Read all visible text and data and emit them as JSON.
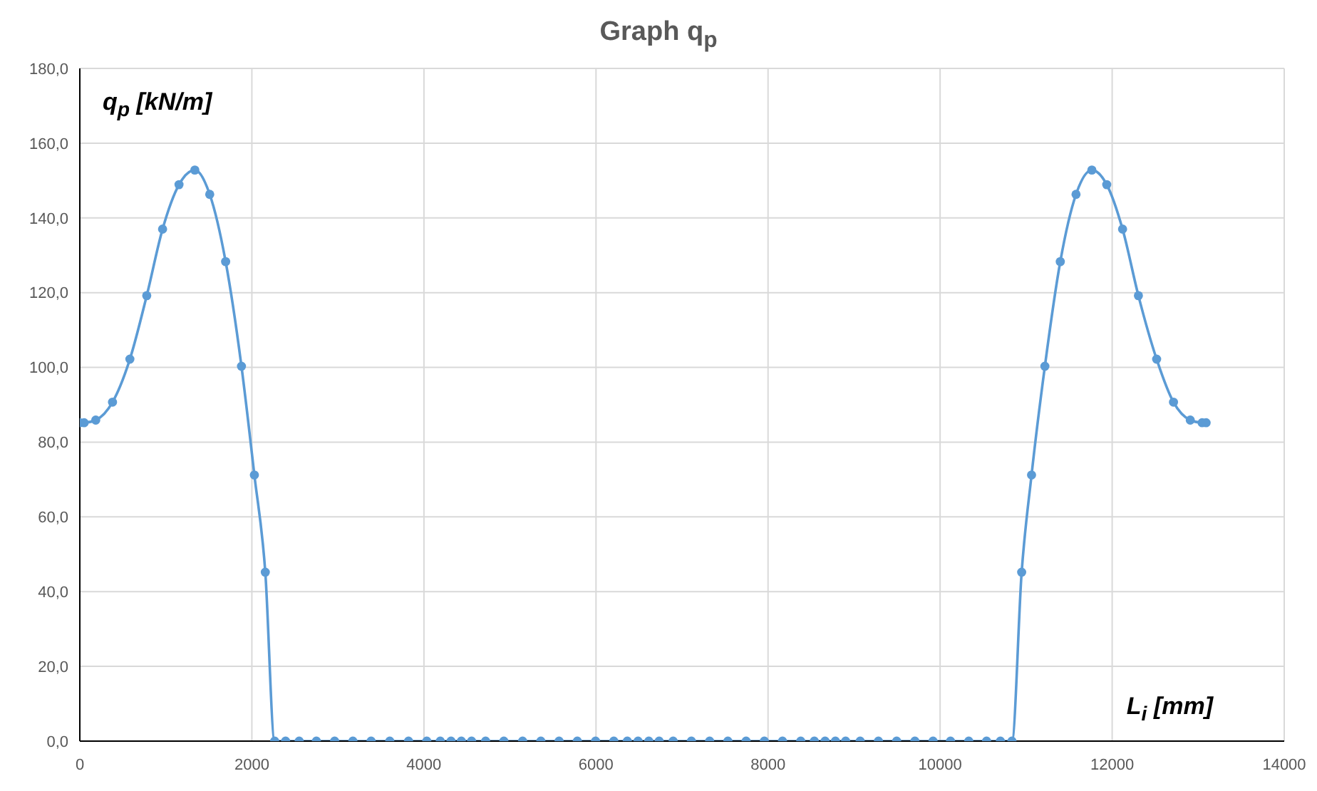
{
  "chart_data": {
    "type": "line",
    "title": "Graph q$_{p}$",
    "xlabel": "L$_{i}$ [mm]",
    "ylabel": "q$_{p}$ [kN/m]",
    "x": [
      0,
      50,
      185,
      380,
      582,
      778,
      962,
      1153,
      1337,
      1510,
      1695,
      1879,
      2029,
      2156,
      2265,
      2392,
      2550,
      2750,
      2962,
      3174,
      3386,
      3603,
      3821,
      4033,
      4190,
      4315,
      4435,
      4554,
      4717,
      4929,
      5147,
      5359,
      5571,
      5783,
      5995,
      6207,
      6364,
      6489,
      6614,
      6734,
      6897,
      7109,
      7321,
      7533,
      7745,
      7957,
      8168,
      8380,
      8538,
      8663,
      8783,
      8902,
      9071,
      9283,
      9495,
      9707,
      9918,
      10121,
      10333,
      10540,
      10701,
      10835,
      10948,
      11063,
      11218,
      11397,
      11580,
      11764,
      11937,
      12121,
      12305,
      12517,
      12713,
      12908,
      13046,
      13092
    ],
    "series": [
      {
        "color": "#5b9bd5",
        "values": [
          85.2,
          85.2,
          85.9,
          90.7,
          102.2,
          119.2,
          137.0,
          148.9,
          152.8,
          146.3,
          128.3,
          100.3,
          71.2,
          45.2,
          0,
          0,
          0,
          0,
          0,
          0,
          0,
          0,
          0,
          0,
          0,
          0,
          0,
          0,
          0,
          0,
          0,
          0,
          0,
          0,
          0,
          0,
          0,
          0,
          0,
          0,
          0,
          0,
          0,
          0,
          0,
          0,
          0,
          0,
          0,
          0,
          0,
          0,
          0,
          0,
          0,
          0,
          0,
          0,
          0,
          0,
          0,
          0,
          45.2,
          71.2,
          100.3,
          128.3,
          146.3,
          152.8,
          148.9,
          137.0,
          119.2,
          102.2,
          90.7,
          85.9,
          85.2,
          85.2
        ]
      }
    ],
    "xlim": [
      0,
      14000
    ],
    "xticks": [
      0,
      2000,
      4000,
      6000,
      8000,
      10000,
      12000,
      14000
    ],
    "ylim": [
      0,
      180
    ],
    "yticks": [
      {
        "value": 0,
        "label": "0,0"
      },
      {
        "value": 20,
        "label": "20,0"
      },
      {
        "value": 40,
        "label": "40,0"
      },
      {
        "value": 60,
        "label": "60,0"
      },
      {
        "value": 80,
        "label": "80,0"
      },
      {
        "value": 100,
        "label": "100,0"
      },
      {
        "value": 120,
        "label": "120,0"
      },
      {
        "value": 140,
        "label": "140,0"
      },
      {
        "value": 160,
        "label": "160,0"
      },
      {
        "value": 180,
        "label": "180,0"
      }
    ],
    "grid": true,
    "marker": "circle",
    "line_style": "solid"
  }
}
